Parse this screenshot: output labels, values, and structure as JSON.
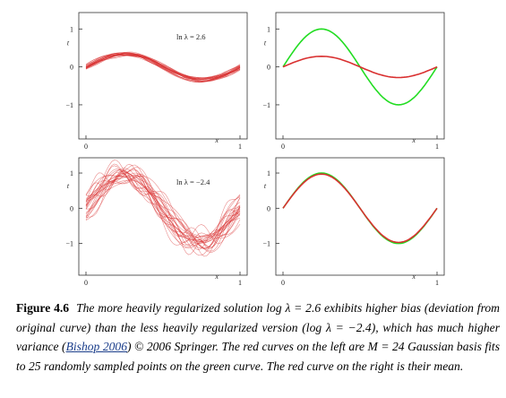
{
  "panels": [
    {
      "id": "top-left",
      "tick_x": [
        "0",
        "1"
      ],
      "tick_y": [
        "1",
        "0",
        "−1"
      ],
      "xlabel": "x",
      "ylabel": "t",
      "annotation": "ln λ = 2.6"
    },
    {
      "id": "top-right",
      "tick_x": [
        "0",
        "1"
      ],
      "tick_y": [
        "1",
        "0",
        "−1"
      ],
      "xlabel": "x",
      "ylabel": "t",
      "annotation": ""
    },
    {
      "id": "bottom-left",
      "tick_x": [
        "0",
        "1"
      ],
      "tick_y": [
        "1",
        "0",
        "−1"
      ],
      "xlabel": "x",
      "ylabel": "t",
      "annotation": "ln λ = −2.4"
    },
    {
      "id": "bottom-right",
      "tick_x": [
        "0",
        "1"
      ],
      "tick_y": [
        "1",
        "0",
        "−1"
      ],
      "xlabel": "x",
      "ylabel": "t",
      "annotation": ""
    }
  ],
  "chart_data": [
    {
      "type": "line",
      "panel": "top-left",
      "title": "",
      "xlim": [
        0,
        1
      ],
      "ylim": [
        -1.5,
        1.5
      ],
      "series": [
        {
          "color": "#d93030",
          "description_count": 25,
          "values_amplitude": 0.35
        }
      ],
      "annotation": "ln λ = 2.6"
    },
    {
      "type": "line",
      "panel": "top-right",
      "xlim": [
        0,
        1
      ],
      "ylim": [
        -1.5,
        1.5
      ],
      "series": [
        {
          "color": "#22dd22",
          "x": [
            0,
            0.25,
            0.5,
            0.75,
            1
          ],
          "y": [
            0,
            1,
            0,
            -1,
            0
          ]
        },
        {
          "color": "#d93030",
          "x": [
            0,
            0.25,
            0.5,
            0.75,
            1
          ],
          "y": [
            0,
            0.28,
            0,
            -0.28,
            0
          ]
        }
      ]
    },
    {
      "type": "line",
      "panel": "bottom-left",
      "xlim": [
        0,
        1
      ],
      "ylim": [
        -1.5,
        1.5
      ],
      "series": [
        {
          "color": "#d93030",
          "description_count": 25,
          "values_amplitude": 1.0
        }
      ],
      "annotation": "ln λ = −2.4"
    },
    {
      "type": "line",
      "panel": "bottom-right",
      "xlim": [
        0,
        1
      ],
      "ylim": [
        -1.5,
        1.5
      ],
      "series": [
        {
          "color": "#22dd22",
          "x": [
            0,
            0.25,
            0.5,
            0.75,
            1
          ],
          "y": [
            0,
            1,
            0,
            -1,
            0
          ]
        },
        {
          "color": "#d93030",
          "x": [
            0,
            0.25,
            0.5,
            0.75,
            1
          ],
          "y": [
            0,
            0.97,
            0,
            -0.97,
            0
          ]
        }
      ]
    }
  ],
  "caption": {
    "label": "Figure 4.6",
    "text_1": "The more heavily regularized solution log λ = 2.6 exhibits higher bias (deviation from original curve) than the less heavily regularized version (log λ = −2.4), which has much higher variance (",
    "cite": "Bishop 2006",
    "text_2": ") © 2006 Springer. The red curves on the left are M = 24 Gaussian basis fits to 25 randomly sampled points on the green curve. The red curve on the right is their mean."
  },
  "colors": {
    "green": "#22dd22",
    "red": "#d93030",
    "axis": "#333333"
  }
}
